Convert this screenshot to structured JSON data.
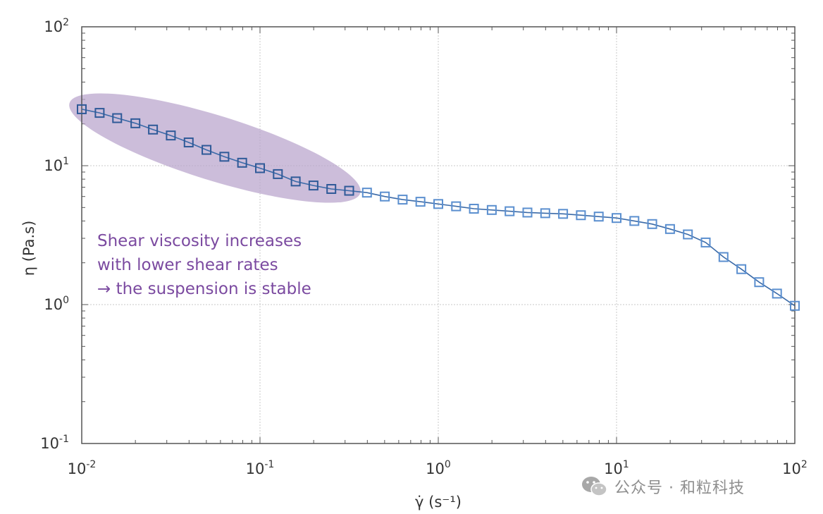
{
  "chart_data": {
    "type": "line",
    "xscale": "log",
    "yscale": "log",
    "xlim": [
      0.01,
      100
    ],
    "ylim": [
      0.1,
      100
    ],
    "xlabel": "γ̇ (s⁻¹)",
    "ylabel": "η (Pa.s)",
    "x_ticks": [
      {
        "base": "10",
        "exp": "-2",
        "value": 0.01
      },
      {
        "base": "10",
        "exp": "-1",
        "value": 0.1
      },
      {
        "base": "10",
        "exp": "0",
        "value": 1
      },
      {
        "base": "10",
        "exp": "1",
        "value": 10
      },
      {
        "base": "10",
        "exp": "2",
        "value": 100
      }
    ],
    "y_ticks": [
      {
        "base": "10",
        "exp": "-1",
        "value": 0.1
      },
      {
        "base": "10",
        "exp": "0",
        "value": 1
      },
      {
        "base": "10",
        "exp": "1",
        "value": 10
      },
      {
        "base": "10",
        "exp": "2",
        "value": 100
      }
    ],
    "grid": true,
    "series": [
      {
        "name": "η",
        "marker": "square",
        "color": "#3a6aa8",
        "x": [
          0.01,
          0.0126,
          0.0158,
          0.02,
          0.0251,
          0.0316,
          0.0398,
          0.0501,
          0.0631,
          0.0794,
          0.1,
          0.1259,
          0.1585,
          0.1995,
          0.2512,
          0.3162,
          0.3981,
          0.5012,
          0.631,
          0.7943,
          1.0,
          1.2589,
          1.5849,
          1.9953,
          2.5119,
          3.1623,
          3.9811,
          5.0119,
          6.3096,
          7.9433,
          10.0,
          12.589,
          15.849,
          19.953,
          25.119,
          31.623,
          39.811,
          50.119,
          63.096,
          79.433,
          100.0
        ],
        "y": [
          25.5,
          24.0,
          22.0,
          20.2,
          18.2,
          16.5,
          14.7,
          13.0,
          11.6,
          10.5,
          9.6,
          8.7,
          7.7,
          7.2,
          6.8,
          6.6,
          6.4,
          6.0,
          5.7,
          5.5,
          5.3,
          5.1,
          4.9,
          4.8,
          4.7,
          4.6,
          4.55,
          4.5,
          4.4,
          4.3,
          4.2,
          4.0,
          3.8,
          3.5,
          3.2,
          2.8,
          2.2,
          1.8,
          1.45,
          1.2,
          0.98
        ]
      }
    ],
    "highlight_region": {
      "description": "low shear-rate region",
      "x_range": [
        0.01,
        0.35
      ],
      "color": "#b9a3cc"
    },
    "annotation": {
      "lines": [
        "Shear viscosity increases",
        "with lower shear rates",
        "→ the suspension is stable"
      ],
      "color": "#7b4aa0"
    }
  },
  "watermark": {
    "text": "公众号 · 和粒科技",
    "icon": "wechat-icon"
  }
}
